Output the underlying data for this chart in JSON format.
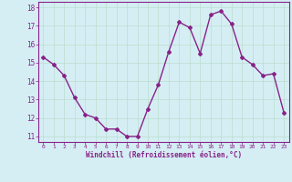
{
  "x": [
    0,
    1,
    2,
    3,
    4,
    5,
    6,
    7,
    8,
    9,
    10,
    11,
    12,
    13,
    14,
    15,
    16,
    17,
    18,
    19,
    20,
    21,
    22,
    23
  ],
  "y": [
    15.3,
    14.9,
    14.3,
    13.1,
    12.2,
    12.0,
    11.4,
    11.4,
    11.0,
    11.0,
    12.5,
    13.8,
    15.6,
    17.2,
    16.9,
    15.5,
    17.6,
    17.8,
    17.1,
    15.3,
    14.9,
    14.3,
    14.4,
    12.3
  ],
  "line_color": "#882288",
  "marker": "D",
  "marker_size": 2.0,
  "bg_color": "#d5eef4",
  "grid_color": "#bbddcc",
  "xlabel": "Windchill (Refroidissement éolien,°C)",
  "xlabel_color": "#882288",
  "tick_color": "#882288",
  "ylim": [
    10.7,
    18.3
  ],
  "xlim": [
    -0.5,
    23.5
  ],
  "yticks": [
    11,
    12,
    13,
    14,
    15,
    16,
    17,
    18
  ],
  "xticks": [
    0,
    1,
    2,
    3,
    4,
    5,
    6,
    7,
    8,
    9,
    10,
    11,
    12,
    13,
    14,
    15,
    16,
    17,
    18,
    19,
    20,
    21,
    22,
    23
  ],
  "linewidth": 1.0
}
